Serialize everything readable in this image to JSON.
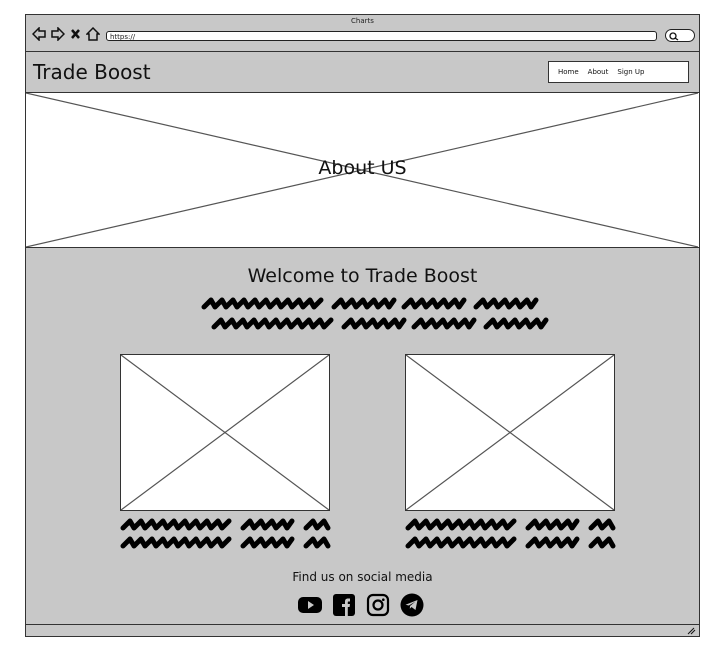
{
  "window": {
    "title": "Charts",
    "url": "https://"
  },
  "browser_icons": [
    "back-arrow-icon",
    "forward-arrow-icon",
    "close-icon",
    "home-icon"
  ],
  "header": {
    "brand": "Trade Boost",
    "nav": [
      "Home",
      "About",
      "Sign Up"
    ]
  },
  "hero": {
    "text": "About US"
  },
  "main": {
    "welcome": "Welcome to Trade Boost"
  },
  "social": {
    "title": "Find us on social media",
    "icons": [
      "youtube-icon",
      "facebook-icon",
      "instagram-icon",
      "telegram-icon"
    ]
  }
}
